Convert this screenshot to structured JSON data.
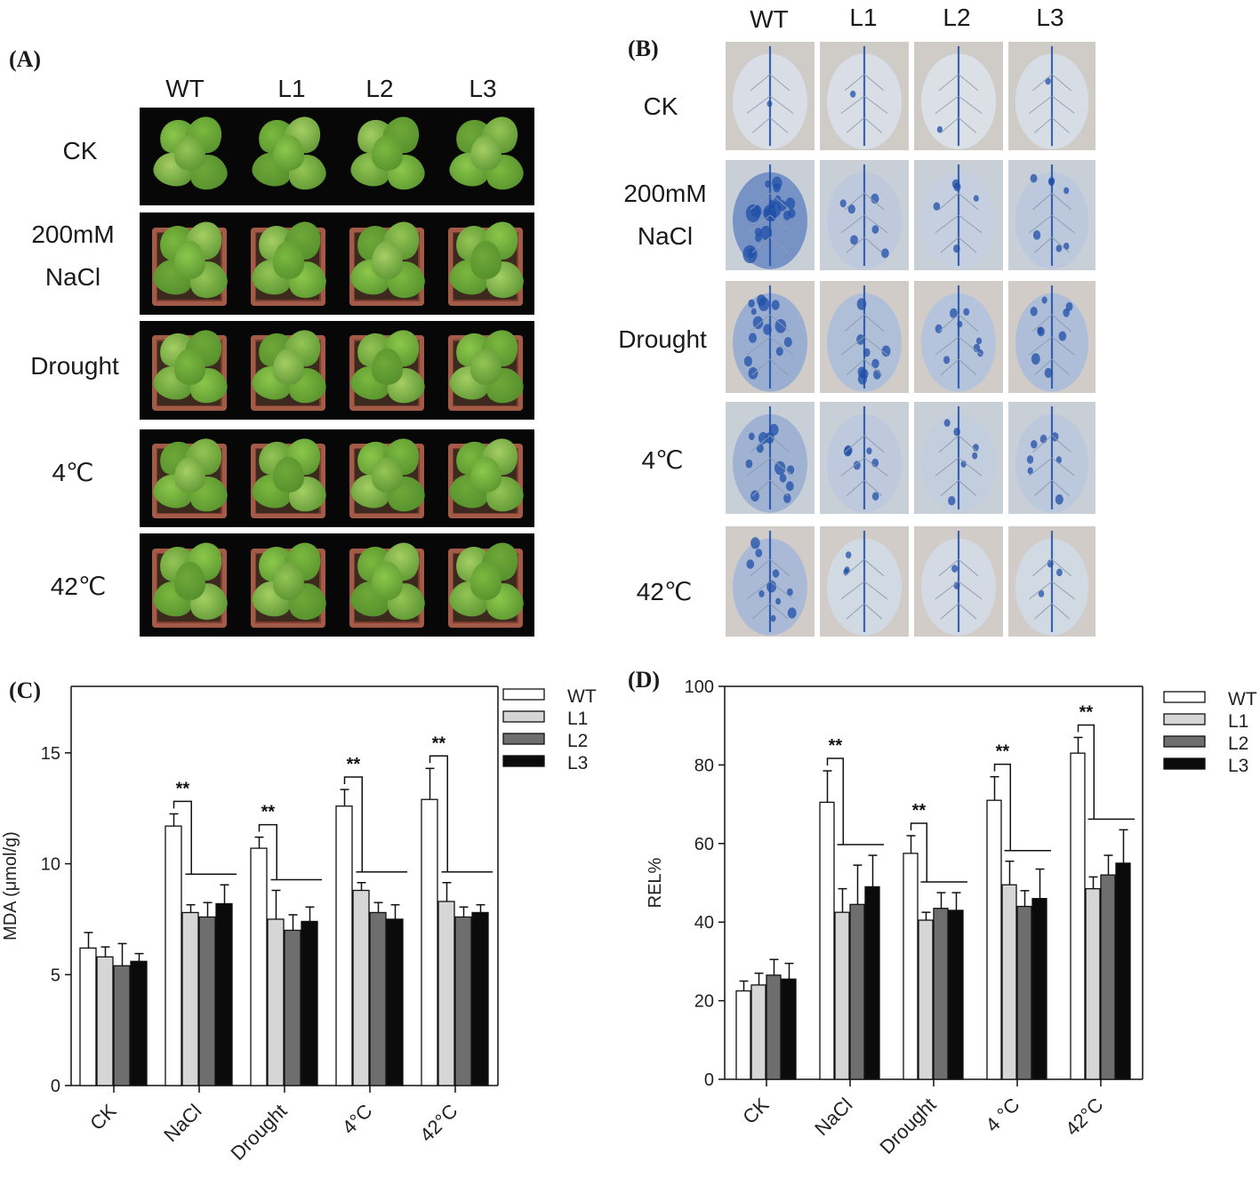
{
  "panelA": {
    "letter": "(A)",
    "columns": [
      "WT",
      "L1",
      "L2",
      "L3"
    ],
    "rows": [
      [
        "CK"
      ],
      [
        "200mM",
        "NaCl"
      ],
      [
        "Drought"
      ],
      [
        "4℃"
      ],
      [
        "42℃"
      ]
    ]
  },
  "panelB": {
    "letter": "(B)",
    "columns": [
      "WT",
      "L1",
      "L2",
      "L3"
    ],
    "rows": [
      [
        "CK"
      ],
      [
        "200mM",
        "NaCl"
      ],
      [
        "Drought"
      ],
      [
        "4℃"
      ],
      [
        "42℃"
      ]
    ],
    "stain_intensity": [
      [
        0.05,
        0.05,
        0.04,
        0.06
      ],
      [
        0.9,
        0.28,
        0.22,
        0.3
      ],
      [
        0.6,
        0.4,
        0.35,
        0.42
      ],
      [
        0.55,
        0.28,
        0.25,
        0.3
      ],
      [
        0.45,
        0.12,
        0.1,
        0.12
      ]
    ]
  },
  "chart_data": [
    {
      "panel": "(C)",
      "type": "bar",
      "categories": [
        "CK",
        "NaCl",
        "Drought",
        "4°C",
        "42°C"
      ],
      "ylabel": "MDA (μmol/g)",
      "xlabel": "",
      "ylim": [
        0,
        18
      ],
      "yticks": [
        0,
        5,
        10,
        15
      ],
      "significance": "**",
      "series": [
        {
          "name": "WT",
          "values": [
            6.2,
            11.7,
            10.7,
            12.6,
            12.9
          ],
          "errors": [
            0.7,
            0.55,
            0.5,
            0.75,
            1.4
          ]
        },
        {
          "name": "L1",
          "values": [
            5.8,
            7.8,
            7.5,
            8.8,
            8.3
          ],
          "errors": [
            0.45,
            0.35,
            1.3,
            0.35,
            0.85
          ]
        },
        {
          "name": "L2",
          "values": [
            5.4,
            7.6,
            7.0,
            7.8,
            7.6
          ],
          "errors": [
            1.0,
            0.65,
            0.7,
            0.45,
            0.45
          ]
        },
        {
          "name": "L3",
          "values": [
            5.6,
            8.2,
            7.4,
            7.5,
            7.8
          ],
          "errors": [
            0.35,
            0.85,
            0.65,
            0.65,
            0.35
          ]
        }
      ],
      "legend_position": "top-right"
    },
    {
      "panel": "(D)",
      "type": "bar",
      "categories": [
        "CK",
        "NaCl",
        "Drought",
        "4 °C",
        "42°C"
      ],
      "ylabel": "REL%",
      "xlabel": "",
      "ylim": [
        0,
        100
      ],
      "yticks": [
        0,
        20,
        40,
        60,
        80,
        100
      ],
      "significance": "**",
      "series": [
        {
          "name": "WT",
          "values": [
            22.5,
            70.5,
            57.5,
            71.0,
            83.0
          ],
          "errors": [
            2.5,
            8.0,
            4.5,
            6.0,
            4.0
          ]
        },
        {
          "name": "L1",
          "values": [
            24.0,
            42.5,
            40.5,
            49.5,
            48.5
          ],
          "errors": [
            3.0,
            6.0,
            2.0,
            6.0,
            3.0
          ]
        },
        {
          "name": "L2",
          "values": [
            26.5,
            44.5,
            43.5,
            44.0,
            52.0
          ],
          "errors": [
            4.0,
            10.0,
            4.0,
            4.0,
            5.0
          ]
        },
        {
          "name": "L3",
          "values": [
            25.5,
            49.0,
            43.0,
            46.0,
            55.0
          ],
          "errors": [
            4.0,
            8.0,
            4.5,
            7.5,
            8.5
          ]
        }
      ],
      "legend_position": "top-right"
    }
  ],
  "colors": {
    "WT": "#ffffff",
    "L1": "#d6d6d6",
    "L2": "#6e6e6e",
    "L3": "#0b0b0b",
    "stain": "#1f4fa8",
    "leaf_green": "#6fae3a"
  }
}
